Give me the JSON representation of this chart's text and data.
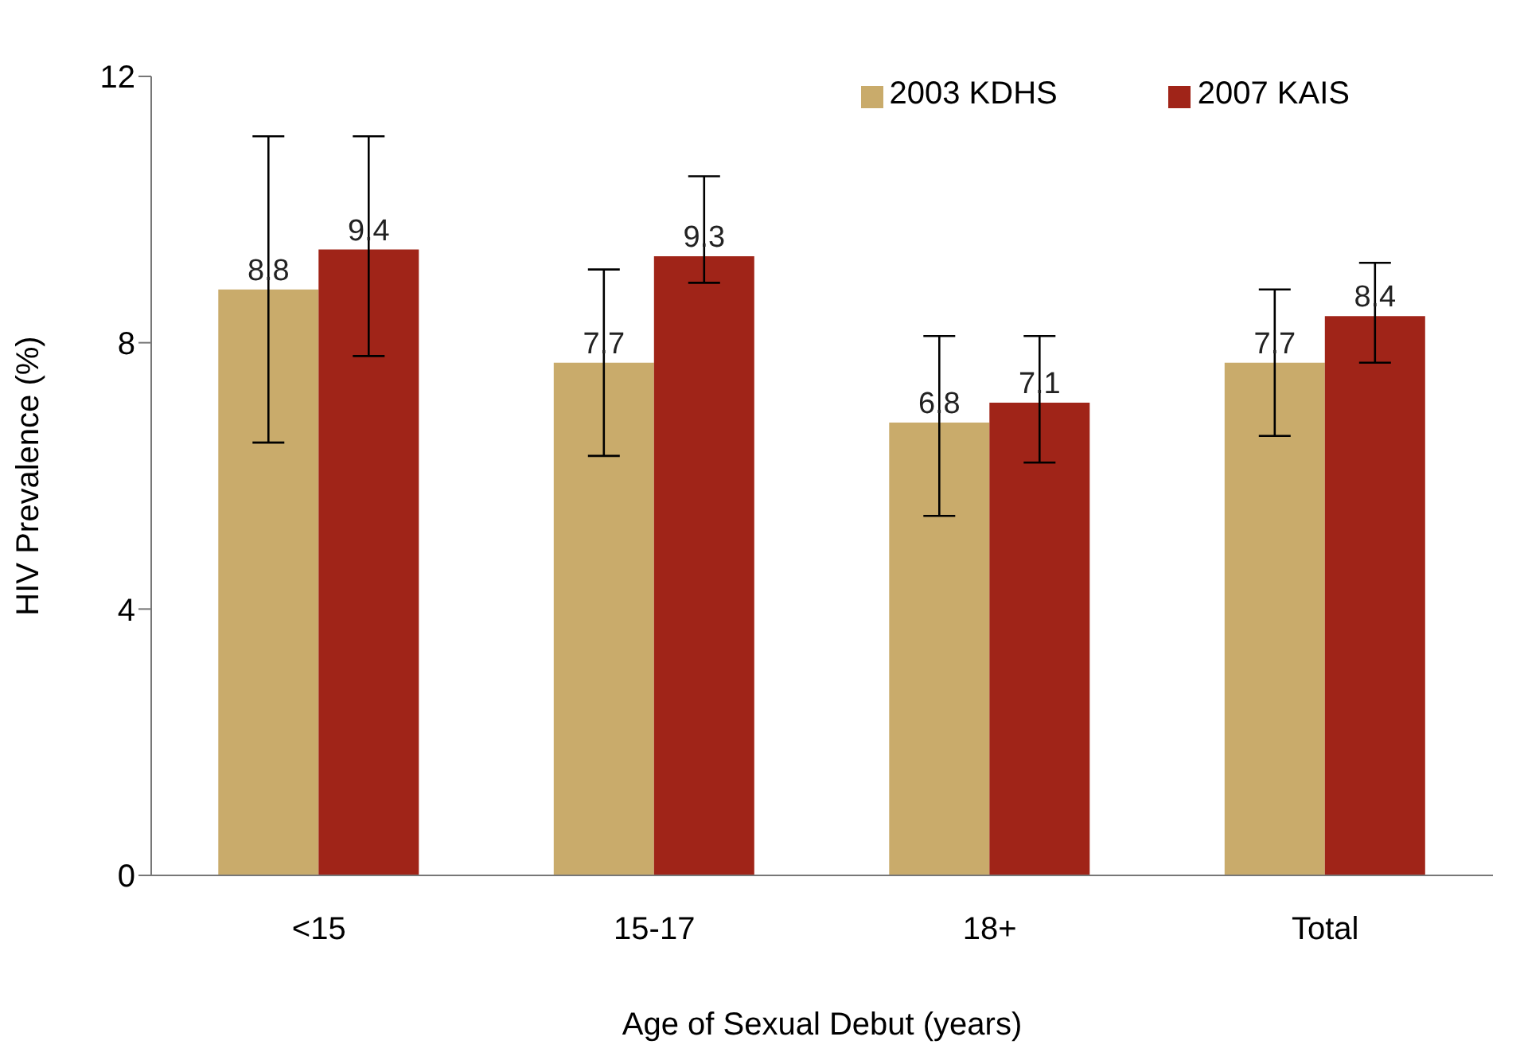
{
  "chart_data": {
    "type": "bar",
    "xlabel": "Age of Sexual Debut (years)",
    "ylabel": "HIV Prevalence (%)",
    "categories": [
      "<15",
      "15-17",
      "18+",
      "Total"
    ],
    "series": [
      {
        "name": "2003 KDHS",
        "color": "#c9ab6b",
        "values": [
          8.8,
          7.7,
          6.8,
          7.7
        ],
        "errors": [
          [
            6.5,
            11.1
          ],
          [
            6.3,
            9.1
          ],
          [
            5.4,
            8.1
          ],
          [
            6.6,
            8.8
          ]
        ]
      },
      {
        "name": "2007 KAIS",
        "color": "#a02418",
        "values": [
          9.4,
          9.3,
          7.1,
          8.4
        ],
        "errors": [
          [
            7.8,
            11.1
          ],
          [
            8.9,
            10.5
          ],
          [
            6.2,
            8.1
          ],
          [
            7.7,
            9.2
          ]
        ]
      }
    ],
    "ylim": [
      0,
      12
    ],
    "yticks": [
      0,
      4,
      8,
      12
    ],
    "grid": false,
    "legend": "top right",
    "data_labels": true
  }
}
